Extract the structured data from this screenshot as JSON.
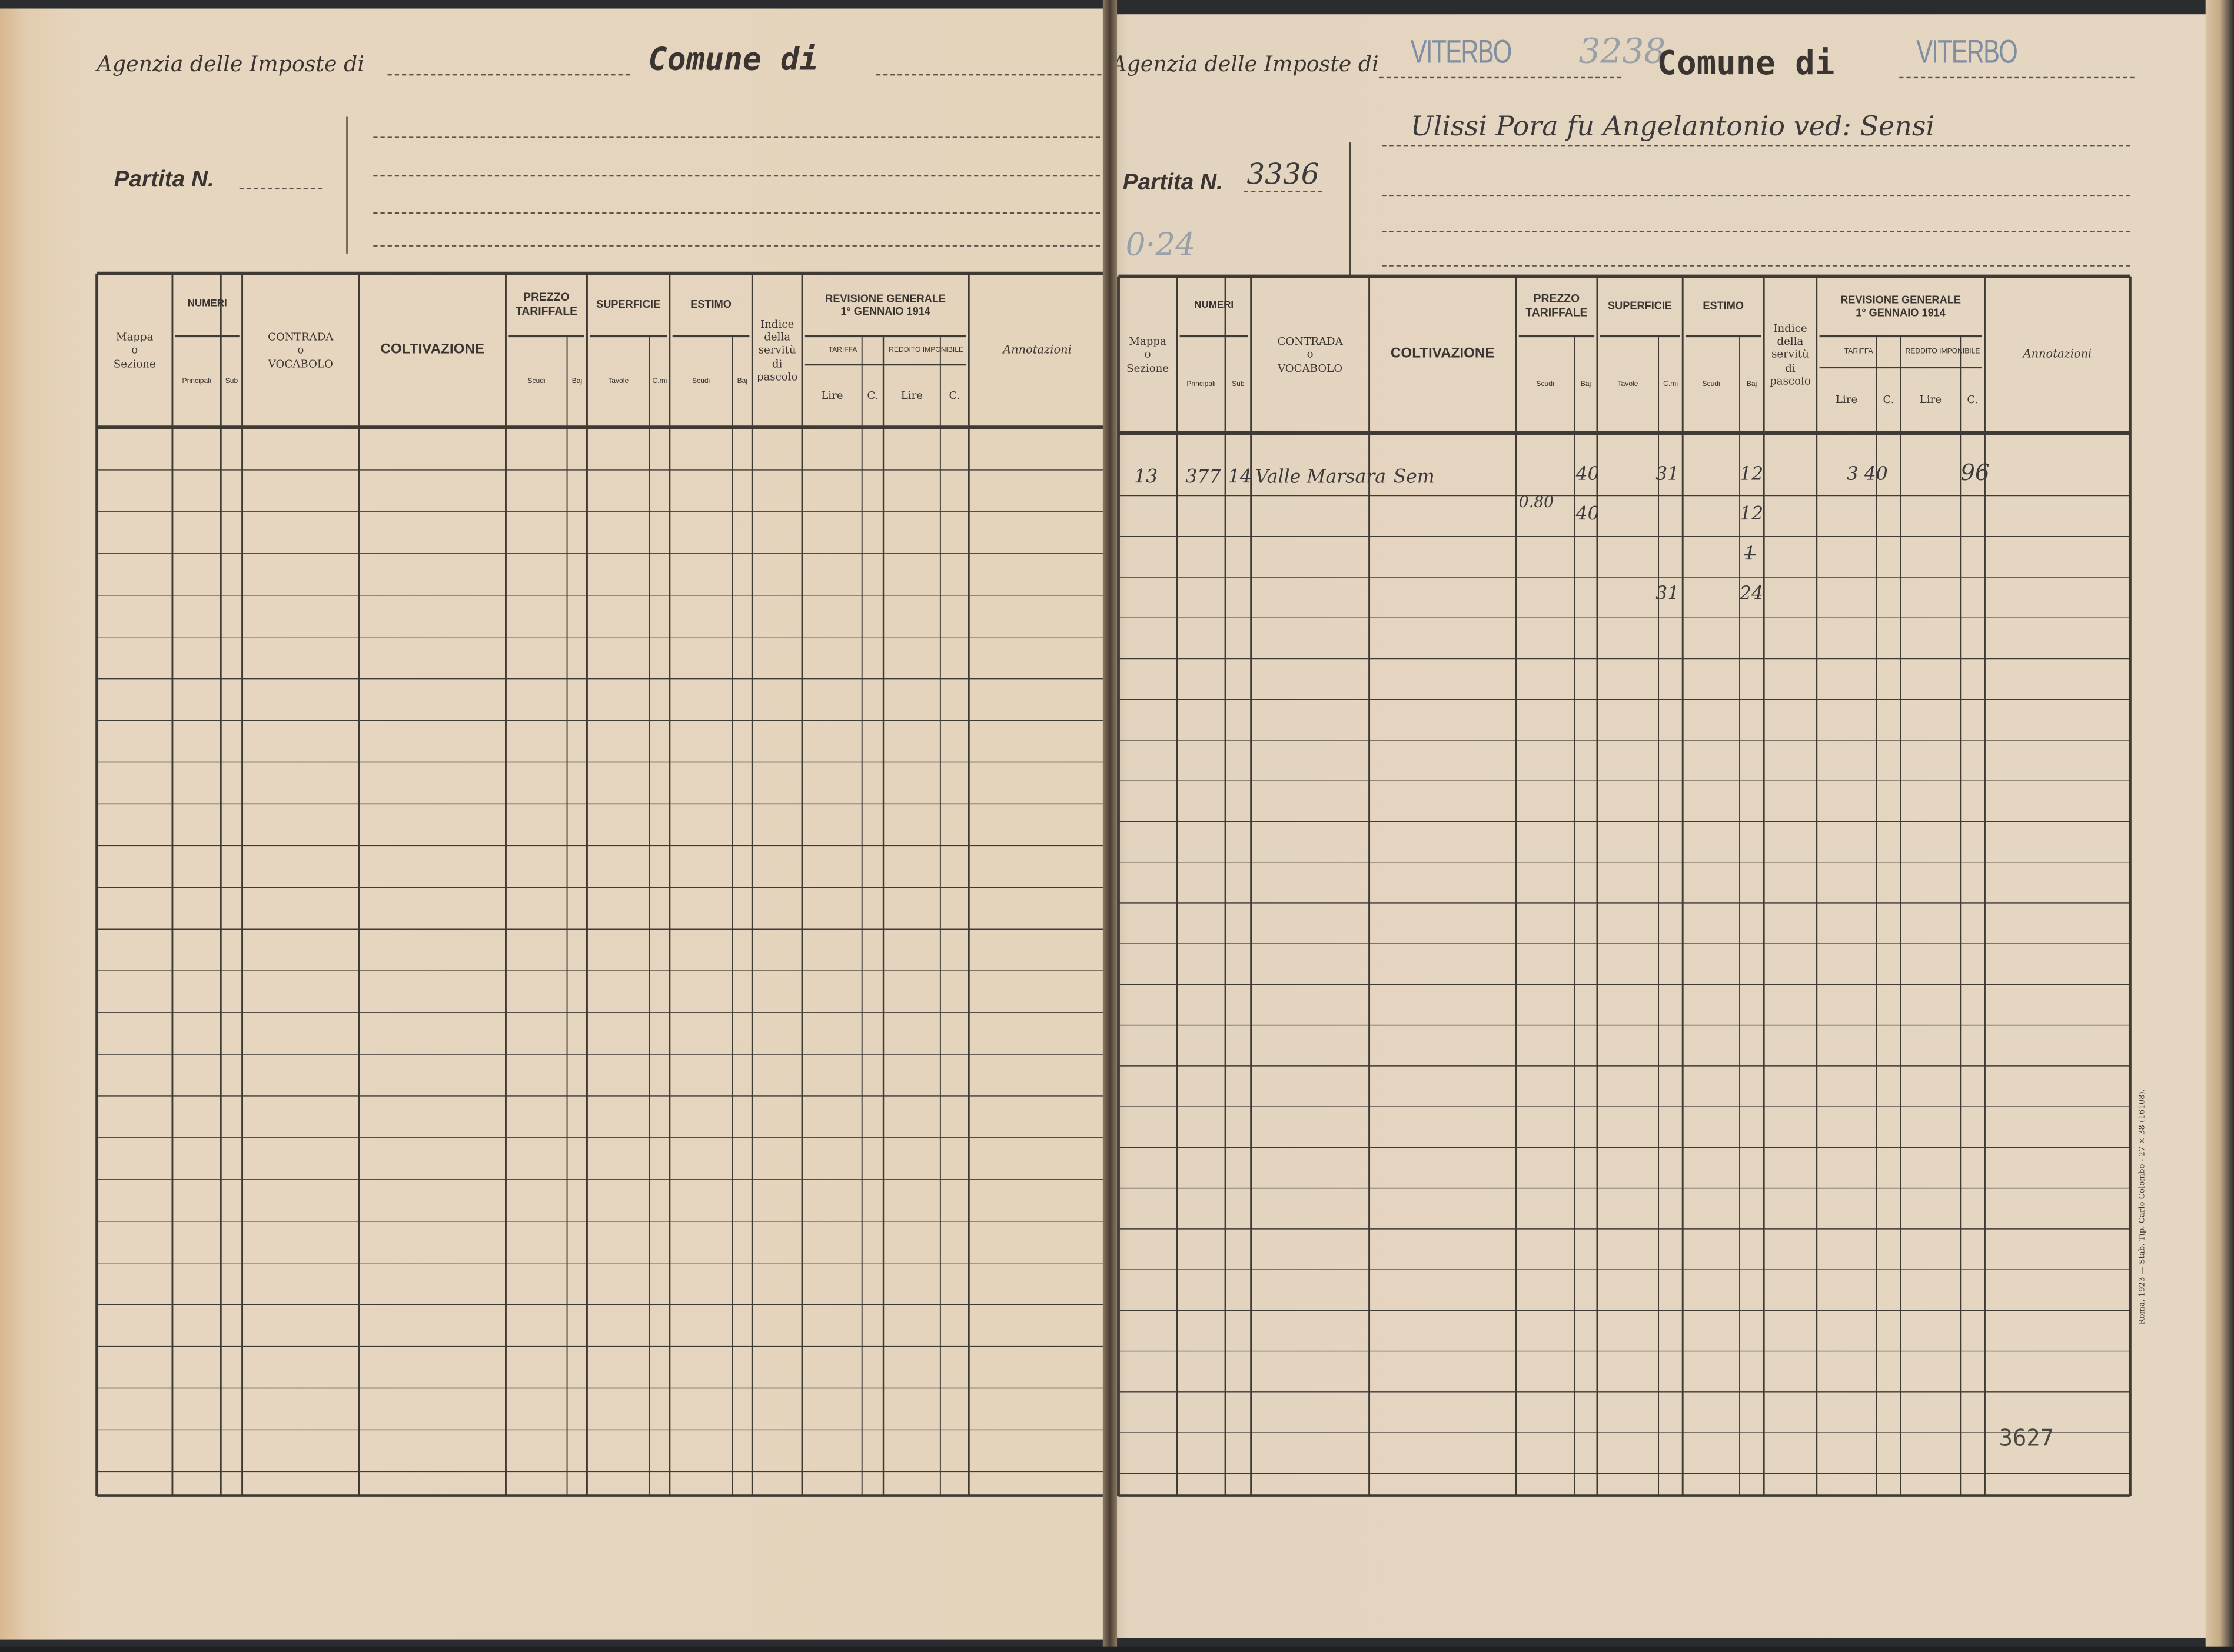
{
  "table_headers": {
    "mappa": "Mappa\no\nSezione",
    "numeri": "NUMERI",
    "principali": "Principali",
    "sub": "Sub",
    "contrada": "CONTRADA\no\nVOCABOLO",
    "coltivazione": "COLTIVAZIONE",
    "prezzo": "PREZZO\nTARIFFALE",
    "superficie": "SUPERFICIE",
    "estimo": "ESTIMO",
    "scudi": "Scudi",
    "baj": "Baj",
    "tavole": "Tavole",
    "cmi": "C.mi",
    "indice": "Indice\ndella\nservitù\ndi\npascolo",
    "revisione": "REVISIONE GENERALE\n1° GENNAIO 1914",
    "tariffa": "TARIFFA",
    "reddito": "REDDITO IMPONIBILE",
    "lire": "Lire",
    "c": "C.",
    "annotazioni": "Annotazioni"
  },
  "left_page": {
    "agenzia_label": "Agenzia delle Imposte di",
    "comune_label": "Comune di",
    "partita_label": "Partita N."
  },
  "right_page": {
    "agenzia_label": "Agenzia delle Imposte di",
    "agenzia_stamp": "VITERBO",
    "agenzia_number": "3238",
    "comune_label": "Comune di",
    "comune_stamp": "VITERBO",
    "partita_label": "Partita N.",
    "partita_number": "3336",
    "owner_name": "Ulissi Pora fu Angelantonio ved: Sensi",
    "pencil_note": "0·24",
    "entries": {
      "mappa": "13",
      "principali": "377",
      "sub": "14",
      "contrada": "Valle Marsara",
      "coltivazione": "Sem",
      "prezzo_baj": "40",
      "prezzo_scudi_2": "0.80",
      "prezzo_baj_2": "40",
      "superficie_cmi": "31",
      "estimo_baj": "12",
      "estimo_baj_2": "12",
      "estimo_struck": "1",
      "total_superficie": "31",
      "total_estimo": "24",
      "tariffa": "3 40",
      "reddito": "96"
    },
    "page_number": "3627",
    "printer_line": "Roma, 1923 — Stab. Tip. Carlo Colombo - 27 × 38 (16108)."
  }
}
